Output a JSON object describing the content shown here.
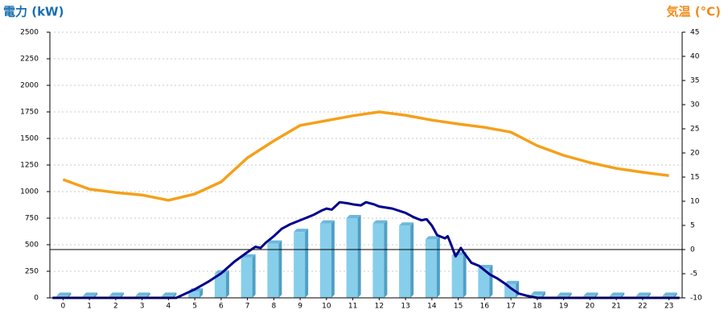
{
  "chart_data": {
    "type": "combo",
    "y_label": "電力 (kW)",
    "y2_label": "気温 (°C)",
    "categories": [
      "0",
      "1",
      "2",
      "3",
      "4",
      "5",
      "6",
      "7",
      "8",
      "9",
      "10",
      "11",
      "12",
      "13",
      "14",
      "15",
      "16",
      "17",
      "18",
      "19",
      "20",
      "21",
      "22",
      "23"
    ],
    "xlim": [
      -0.5,
      23.5
    ],
    "ylim": [
      0,
      2500
    ],
    "yticks": [
      0,
      250,
      500,
      750,
      1000,
      1250,
      1500,
      1750,
      2000,
      2250,
      2500
    ],
    "y2lim": [
      -10,
      45
    ],
    "y2ticks": [
      -10,
      -5,
      0,
      5,
      10,
      15,
      20,
      25,
      30,
      35,
      40,
      45
    ],
    "grid": true,
    "series": [
      {
        "type": "bar",
        "color": "#87ceeb",
        "values": [
          20,
          20,
          20,
          20,
          20,
          60,
          230,
          380,
          510,
          620,
          700,
          750,
          700,
          680,
          550,
          400,
          280,
          130,
          30,
          20,
          20,
          20,
          20,
          20
        ]
      },
      {
        "type": "line",
        "axis": "y2",
        "color": "#f5a01a",
        "values": [
          14.5,
          12.5,
          11.8,
          11.3,
          10.2,
          11.5,
          14,
          19,
          22.5,
          25.7,
          26.7,
          27.7,
          28.5,
          27.8,
          26.8,
          26,
          25.3,
          24.3,
          21.5,
          19.5,
          18,
          16.8,
          16,
          15.3
        ]
      },
      {
        "type": "line",
        "color": "#00008b",
        "x": [
          -0.4,
          4.3,
          5,
          5.5,
          6,
          6.5,
          7,
          7.3,
          7.5,
          7.7,
          8,
          8.3,
          8.6,
          9,
          9.5,
          9.8,
          10,
          10.2,
          10.5,
          10.8,
          11,
          11.3,
          11.5,
          11.8,
          12,
          12.5,
          13,
          13.3,
          13.6,
          13.8,
          14,
          14.2,
          14.5,
          14.6,
          14.7,
          14.9,
          15.1,
          15.2,
          15.5,
          15.8,
          16,
          16.2,
          16.5,
          16.8,
          17,
          17.3,
          17.6,
          18,
          23.4
        ],
        "values": [
          0,
          0,
          80,
          150,
          230,
          340,
          430,
          480,
          470,
          520,
          580,
          650,
          690,
          730,
          780,
          820,
          840,
          830,
          900,
          890,
          880,
          870,
          900,
          880,
          860,
          840,
          800,
          760,
          730,
          740,
          680,
          590,
          560,
          580,
          520,
          390,
          470,
          430,
          330,
          300,
          260,
          220,
          180,
          130,
          90,
          40,
          20,
          0,
          0
        ]
      }
    ]
  }
}
